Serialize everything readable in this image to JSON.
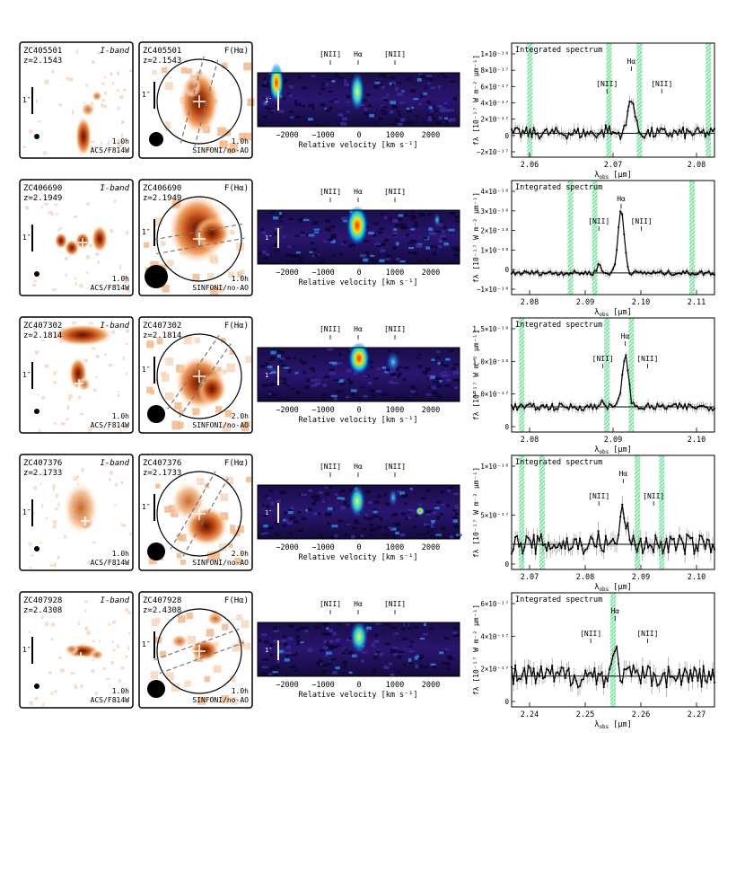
{
  "figure": {
    "rows": [
      {
        "id": "ZC405501",
        "z": "z=2.1543",
        "iband": {
          "band": "I-band",
          "time": "1.0h",
          "instrument": "ACS/F814W"
        },
        "ha": {
          "label": "F(Hα)",
          "time": "1.0h",
          "instrument": "SINFONI/no-AO"
        },
        "spec": {
          "title": "Integrated spectrum",
          "yticks": [
            "1×10⁻¹⁶",
            "8×10⁻¹⁷",
            "6×10⁻¹⁷",
            "4×10⁻¹⁷",
            "2×10⁻¹⁷",
            "0",
            "−2×10⁻¹⁷"
          ],
          "xticks": [
            "2.06",
            "2.07",
            "2.08"
          ]
        }
      },
      {
        "id": "ZC406690",
        "z": "z=2.1949",
        "iband": {
          "band": "I-band",
          "time": "1.0h",
          "instrument": "ACS/F814W"
        },
        "ha": {
          "label": "F(Hα)",
          "time": "1.0h",
          "instrument": "SINFONI/no-AO"
        },
        "spec": {
          "title": "Integrated spectrum",
          "yticks": [
            "4×10⁻¹⁶",
            "3×10⁻¹⁶",
            "2×10⁻¹⁶",
            "1×10⁻¹⁶",
            "0",
            "−1×10⁻¹⁶"
          ],
          "xticks": [
            "2.08",
            "2.09",
            "2.10",
            "2.11"
          ]
        }
      },
      {
        "id": "ZC407302",
        "z": "z=2.1814",
        "iband": {
          "band": "I-band",
          "time": "1.0h",
          "instrument": "ACS/F814W"
        },
        "ha": {
          "label": "F(Hα)",
          "time": "2.0h",
          "instrument": "SINFONI/no-AO"
        },
        "spec": {
          "title": "Integrated spectrum",
          "yticks": [
            "1.5×10⁻¹⁶",
            "1.0×10⁻¹⁶",
            "5.0×10⁻¹⁷",
            "0"
          ],
          "xticks": [
            "2.08",
            "2.09",
            "2.10"
          ]
        }
      },
      {
        "id": "ZC407376",
        "z": "z=2.1733",
        "iband": {
          "band": "I-band",
          "time": "1.0h",
          "instrument": "ACS/F814W"
        },
        "ha": {
          "label": "F(Hα)",
          "time": "2.0h",
          "instrument": "SINFONI/no-AO"
        },
        "spec": {
          "title": "Integrated spectrum",
          "yticks": [
            "1×10⁻¹⁶",
            "5×10⁻¹⁷",
            "0"
          ],
          "xticks": [
            "2.07",
            "2.08",
            "2.09",
            "2.10"
          ]
        }
      },
      {
        "id": "ZC407928",
        "z": "z=2.4308",
        "iband": {
          "band": "I-band",
          "time": "1.0h",
          "instrument": "ACS/F814W"
        },
        "ha": {
          "label": "F(Hα)",
          "time": "1.0h",
          "instrument": "SINFONI/no-AO"
        },
        "spec": {
          "title": "Integrated spectrum",
          "yticks": [
            "6×10⁻¹⁷",
            "4×10⁻¹⁷",
            "2×10⁻¹⁷",
            "0"
          ],
          "xticks": [
            "2.24",
            "2.25",
            "2.26",
            "2.27"
          ]
        }
      }
    ],
    "common": {
      "arcsec": "1″",
      "lines": [
        "[NII]",
        "Hα",
        "[NII]"
      ],
      "vel_ticks": [
        "−2000",
        "−1000",
        "0",
        "1000",
        "2000"
      ],
      "vel_axis": "Relative velocity  [km s⁻¹]",
      "spec_xlabel": "λ",
      "spec_xlabel_sub": "obs",
      "spec_xlabel_unit": "  [μm]",
      "spec_ylabel": "fλ [10⁻¹⁷ W m⁻² μm⁻¹]"
    }
  }
}
